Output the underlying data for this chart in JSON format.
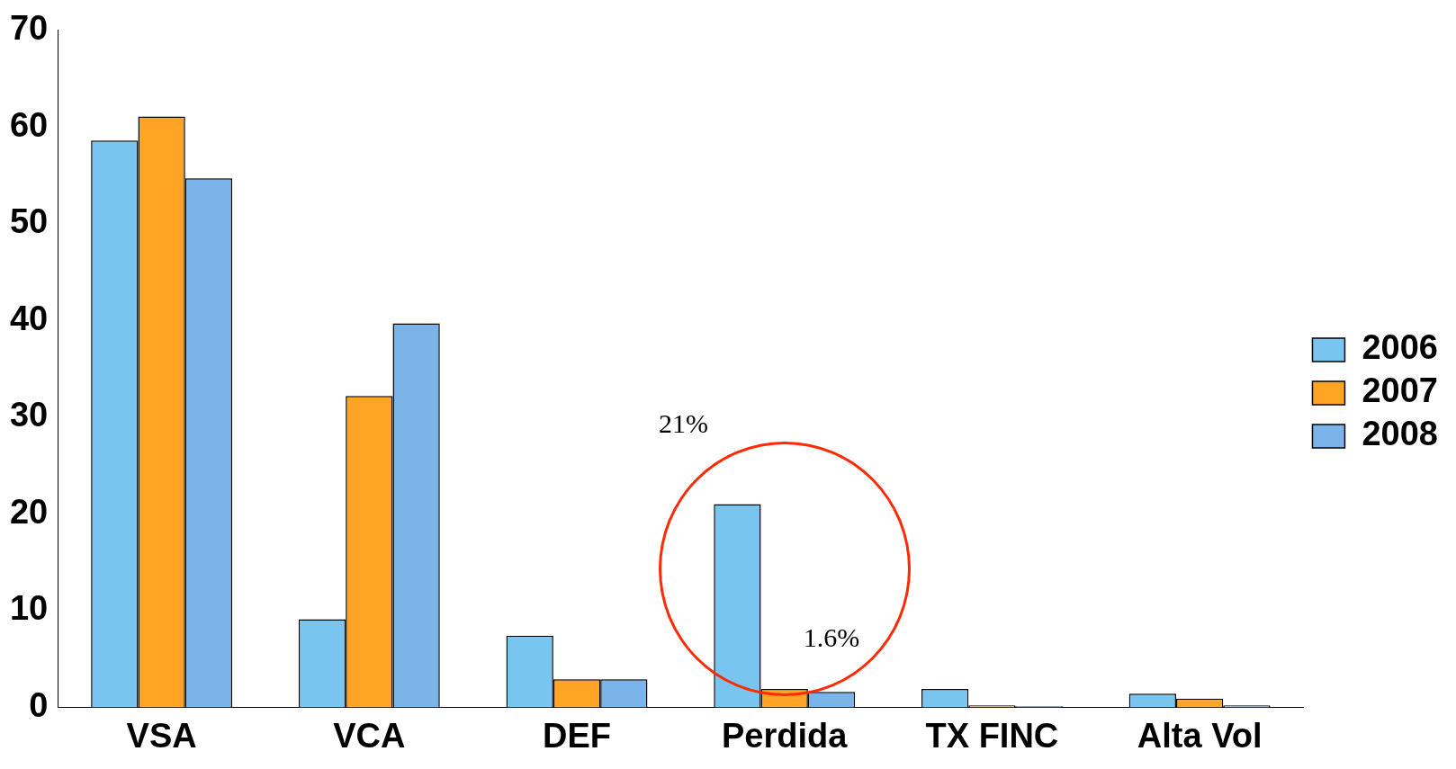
{
  "chart_data": {
    "type": "bar",
    "categories": [
      "VSA",
      "VCA",
      "DEF",
      "Perdida",
      "TX FINC",
      "Alta Vol"
    ],
    "series": [
      {
        "name": "2006",
        "color": "#78c6f0",
        "values": [
          58.6,
          9.1,
          7.4,
          21,
          1.9,
          1.4
        ]
      },
      {
        "name": "2007",
        "color": "#ffa424",
        "values": [
          61.1,
          32.2,
          2.9,
          1.9,
          0.2,
          0.9
        ]
      },
      {
        "name": "2008",
        "color": "#7ab4e8",
        "values": [
          54.7,
          39.7,
          2.9,
          1.6,
          0.1,
          0.2
        ]
      }
    ],
    "ylim": [
      0,
      70
    ],
    "yticks": [
      0,
      10,
      20,
      30,
      40,
      50,
      60,
      70
    ],
    "grid": false,
    "legend": "right",
    "annotations": [
      "21%",
      {
        "text": "1.6%",
        "x": "Perdida",
        "y": 1.6
      }
    ]
  }
}
